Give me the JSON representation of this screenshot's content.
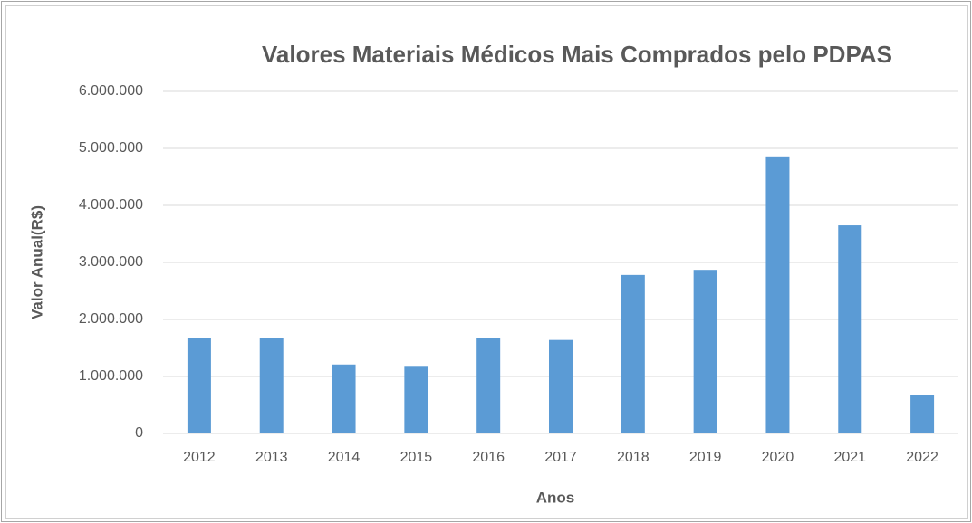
{
  "chart_data": {
    "type": "bar",
    "title": "Valores Materiais  Médicos Mais Comprados pelo PDPAS",
    "x_label": "Anos",
    "y_label": "Valor Anual(R$)",
    "categories": [
      "2012",
      "2013",
      "2014",
      "2015",
      "2016",
      "2017",
      "2018",
      "2019",
      "2020",
      "2021",
      "2022"
    ],
    "values": [
      1670000,
      1670000,
      1210000,
      1170000,
      1680000,
      1640000,
      2780000,
      2870000,
      4860000,
      3650000,
      680000
    ],
    "color": "#5b9bd5",
    "ylim": [
      0,
      6000000
    ],
    "yticks": [
      0,
      {
        "value": 1000000,
        "label": "1.000.000"
      },
      {
        "value": 2000000,
        "label": "2.000.000"
      },
      {
        "value": 3000000,
        "label": "3.000.000"
      },
      {
        "value": 4000000,
        "label": "4.000.000"
      },
      {
        "value": 5000000,
        "label": "5.000.000"
      },
      {
        "value": 6000000,
        "label": "6.000.000"
      }
    ],
    "grid": true
  }
}
